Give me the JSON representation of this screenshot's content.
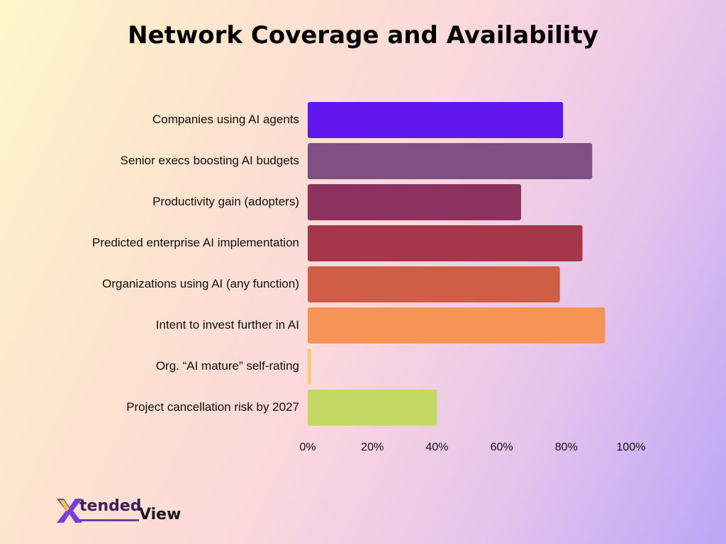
{
  "chart_data": {
    "type": "bar",
    "orientation": "horizontal",
    "title": "Network Coverage and Availability",
    "categories": [
      "Companies using AI agents",
      "Senior execs boosting AI budgets",
      "Productivity gain (adopters)",
      "Predicted enterprise AI implementation",
      "Organizations using AI (any function)",
      "Intent to invest further in AI",
      "Org. “AI mature” self-rating",
      "Project cancellation risk by 2027"
    ],
    "values": [
      79,
      88,
      66,
      85,
      78,
      92,
      1,
      40
    ],
    "colors": [
      "#5f17ec",
      "#7f5083",
      "#8b335e",
      "#a6364a",
      "#d05e47",
      "#f59455",
      "#f8c86c",
      "#c4d964"
    ],
    "xlim": [
      0,
      100
    ],
    "x_ticks": [
      0,
      20,
      40,
      60,
      80,
      100
    ],
    "x_tick_labels": [
      "0%",
      "20%",
      "40%",
      "60%",
      "80%",
      "100%"
    ],
    "xlabel": "",
    "ylabel": "",
    "grid": false,
    "legend": "none"
  },
  "logo": {
    "mark": "X",
    "text_a": "tended",
    "text_b": "View"
  }
}
